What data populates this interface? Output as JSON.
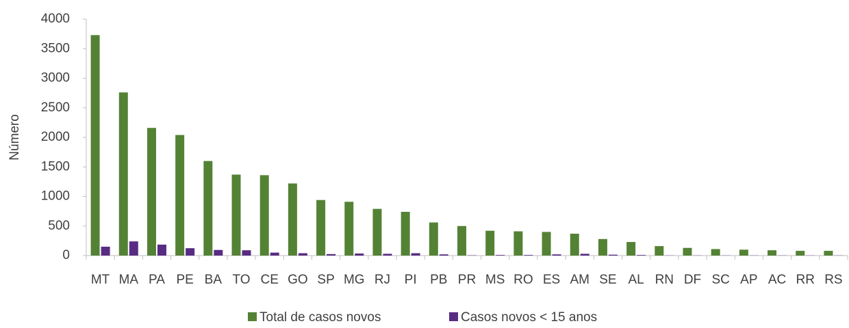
{
  "chart_data": {
    "type": "bar",
    "y_label": "Número",
    "categories": [
      "MT",
      "MA",
      "PA",
      "PE",
      "BA",
      "TO",
      "CE",
      "GO",
      "SP",
      "MG",
      "RJ",
      "PI",
      "PB",
      "PR",
      "MS",
      "RO",
      "ES",
      "AM",
      "SE",
      "AL",
      "RN",
      "DF",
      "SC",
      "AP",
      "AC",
      "RR",
      "RS"
    ],
    "series": [
      {
        "name": "Total de casos novos",
        "color": "#548235",
        "values": [
          3730,
          2760,
          2160,
          2040,
          1600,
          1370,
          1360,
          1220,
          940,
          910,
          790,
          740,
          560,
          500,
          420,
          410,
          400,
          370,
          280,
          230,
          160,
          130,
          110,
          100,
          90,
          80,
          80
        ]
      },
      {
        "name": "Casos novos < 15 anos",
        "color": "#582c83",
        "values": [
          150,
          240,
          185,
          125,
          95,
          90,
          50,
          40,
          25,
          35,
          30,
          40,
          20,
          5,
          10,
          10,
          20,
          30,
          15,
          10,
          3,
          3,
          3,
          3,
          3,
          3,
          3
        ]
      }
    ],
    "ylim": [
      0,
      4000
    ],
    "yticks": [
      0,
      500,
      1000,
      1500,
      2000,
      2500,
      3000,
      3500,
      4000
    ],
    "grid": false,
    "legend": "bottom"
  }
}
